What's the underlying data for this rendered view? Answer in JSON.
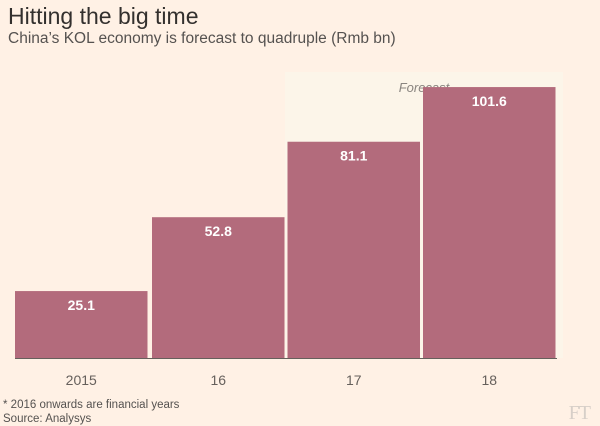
{
  "header": {
    "title": "Hitting the big time",
    "subtitle": "China’s KOL economy is forecast to quadruple (Rmb bn)"
  },
  "chart_data": {
    "type": "bar",
    "categories": [
      "2015",
      "16",
      "17",
      "18"
    ],
    "values": [
      25.1,
      52.8,
      81.1,
      101.6
    ],
    "value_labels": [
      "25.1",
      "52.8",
      "81.1",
      "101.6"
    ],
    "forecast_label": "Forecast",
    "forecast_start_index": 2,
    "ylim": [
      0,
      105
    ],
    "colors": {
      "bar": "#b36b7c",
      "forecast_band": "#fcf5e9",
      "background": "#fff1e5",
      "axis": "#66605c",
      "tick_label": "#66605c"
    },
    "grid": false
  },
  "footer": {
    "footnote": "* 2016 onwards are financial years",
    "source": "Source: Analysys",
    "logo": "FT"
  }
}
